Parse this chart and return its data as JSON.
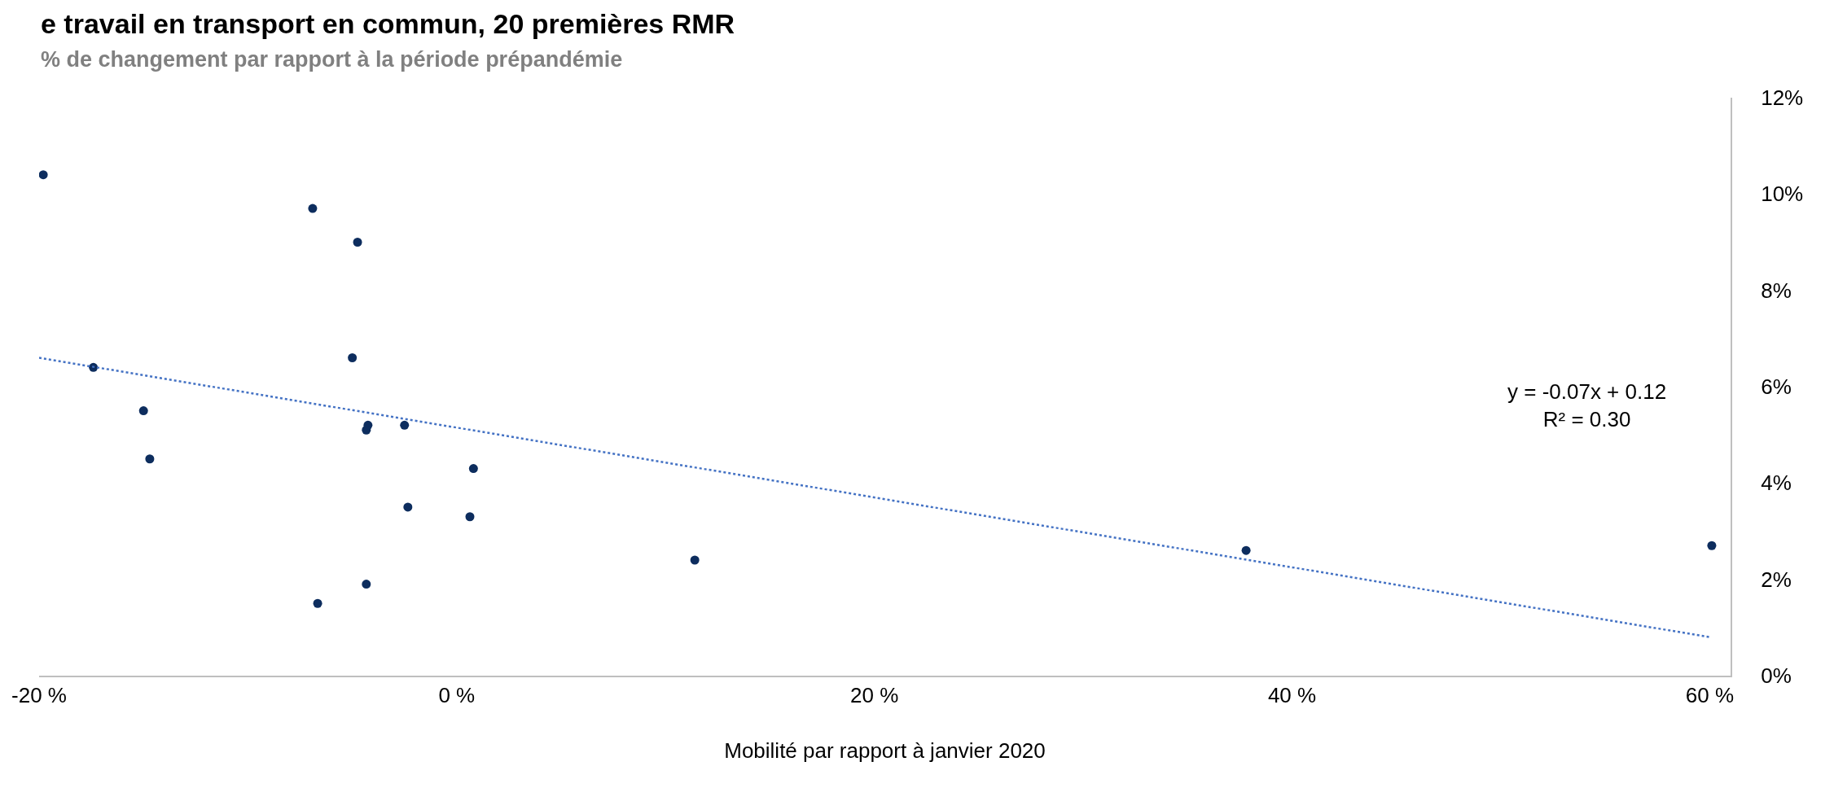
{
  "chart_data": {
    "type": "scatter",
    "title": "e travail en transport en commun, 20 premières RMR",
    "subtitle": "% de changement par rapport à la période prépandémie",
    "xlabel": "Mobilité par rapport à janvier 2020",
    "series": [
      {
        "color": "#0d2d5e",
        "x": [
          -19.8,
          -6.9,
          -4.75,
          -17.4,
          -5.0,
          -15.0,
          -14.7,
          -4.25,
          -4.33,
          -2.5,
          0.8,
          -2.34,
          0.63,
          -6.66,
          -4.33,
          11.4,
          37.8,
          60.1
        ],
        "values": [
          10.4,
          9.7,
          9.0,
          6.4,
          6.6,
          5.5,
          4.5,
          5.2,
          5.1,
          5.2,
          4.3,
          3.5,
          3.3,
          1.5,
          1.9,
          2.4,
          2.6,
          2.7
        ]
      },
      {
        "type": "line",
        "color": "#4472c4",
        "line_style": "dotted",
        "marker": "none",
        "x": [
          -20,
          60
        ],
        "values": [
          6.6,
          0.8
        ]
      }
    ],
    "annotations": [
      "y = -0.07x + 0.12\nR² = 0.30"
    ],
    "xlim": [
      -20,
      61
    ],
    "xticks": [
      {
        "value": -20,
        "label": "-20 %"
      },
      {
        "value": 0,
        "label": "0 %"
      },
      {
        "value": 20,
        "label": "20 %"
      },
      {
        "value": 40,
        "label": "40 %"
      },
      {
        "value": 60,
        "label": "60 %"
      }
    ],
    "ylim": [
      0,
      12
    ],
    "yticks": [
      {
        "value": 0,
        "label": "0%"
      },
      {
        "value": 2,
        "label": "2%"
      },
      {
        "value": 4,
        "label": "4%"
      },
      {
        "value": 6,
        "label": "6%"
      },
      {
        "value": 8,
        "label": "8%"
      },
      {
        "value": 10,
        "label": "10%"
      },
      {
        "value": 12,
        "label": "12%"
      }
    ],
    "marker": "circle"
  }
}
